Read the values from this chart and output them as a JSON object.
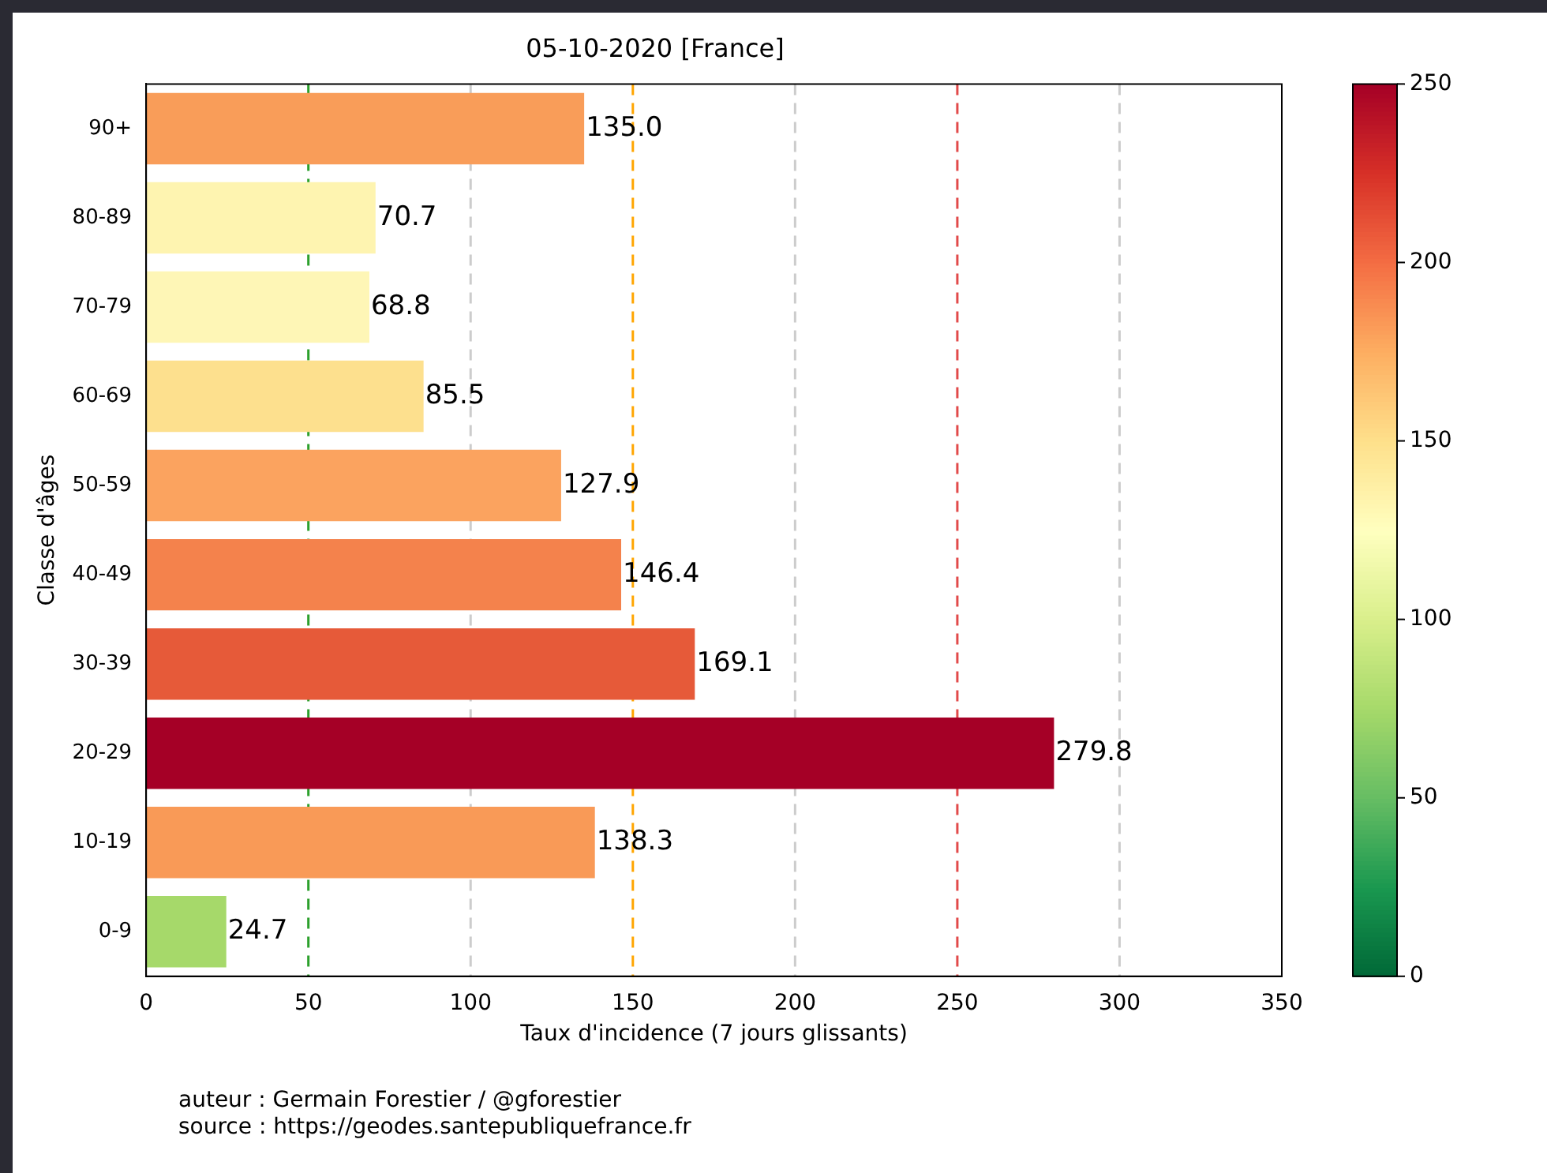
{
  "chart_data": {
    "type": "bar",
    "orientation": "horizontal",
    "title": "05-10-2020 [France]",
    "xlabel": "Taux d'incidence (7 jours glissants)",
    "ylabel": "Classe d'âges",
    "categories": [
      "90+",
      "80-89",
      "70-79",
      "60-69",
      "50-59",
      "40-49",
      "30-39",
      "20-29",
      "10-19",
      "0-9"
    ],
    "values": [
      135.0,
      70.7,
      68.8,
      85.5,
      127.9,
      146.4,
      169.1,
      279.8,
      138.3,
      24.7
    ],
    "value_labels": [
      "135.0",
      "70.7",
      "68.8",
      "85.5",
      "127.9",
      "146.4",
      "169.1",
      "279.8",
      "138.3",
      "24.7"
    ],
    "colors": [
      "#f99d59",
      "#fef4b0",
      "#fef6b6",
      "#fde08e",
      "#fba35f",
      "#f4824c",
      "#e65a39",
      "#a50026",
      "#f99a57",
      "#a6d96a"
    ],
    "xlim": [
      0,
      350
    ],
    "xticks": [
      0,
      50,
      100,
      150,
      200,
      250,
      300,
      350
    ],
    "clim": [
      0,
      250
    ],
    "cticks": [
      0,
      50,
      100,
      150,
      200,
      250
    ],
    "ref_lines": [
      {
        "axis": "x",
        "value": 50,
        "color": "#2ca02c",
        "line_style": "dashed"
      },
      {
        "axis": "x",
        "value": 100,
        "color": "#cccccc",
        "line_style": "dashed"
      },
      {
        "axis": "x",
        "value": 150,
        "color": "#ffa500",
        "line_style": "dashed"
      },
      {
        "axis": "x",
        "value": 200,
        "color": "#cccccc",
        "line_style": "dashed"
      },
      {
        "axis": "x",
        "value": 250,
        "color": "#e24a4a",
        "line_style": "dashed"
      },
      {
        "axis": "x",
        "value": 300,
        "color": "#cccccc",
        "line_style": "dashed"
      }
    ],
    "grid": false,
    "legend": false,
    "annotations": [
      "auteur : Germain Forestier / @gforestier",
      "source : https://geodes.santepubliquefrance.fr"
    ]
  }
}
